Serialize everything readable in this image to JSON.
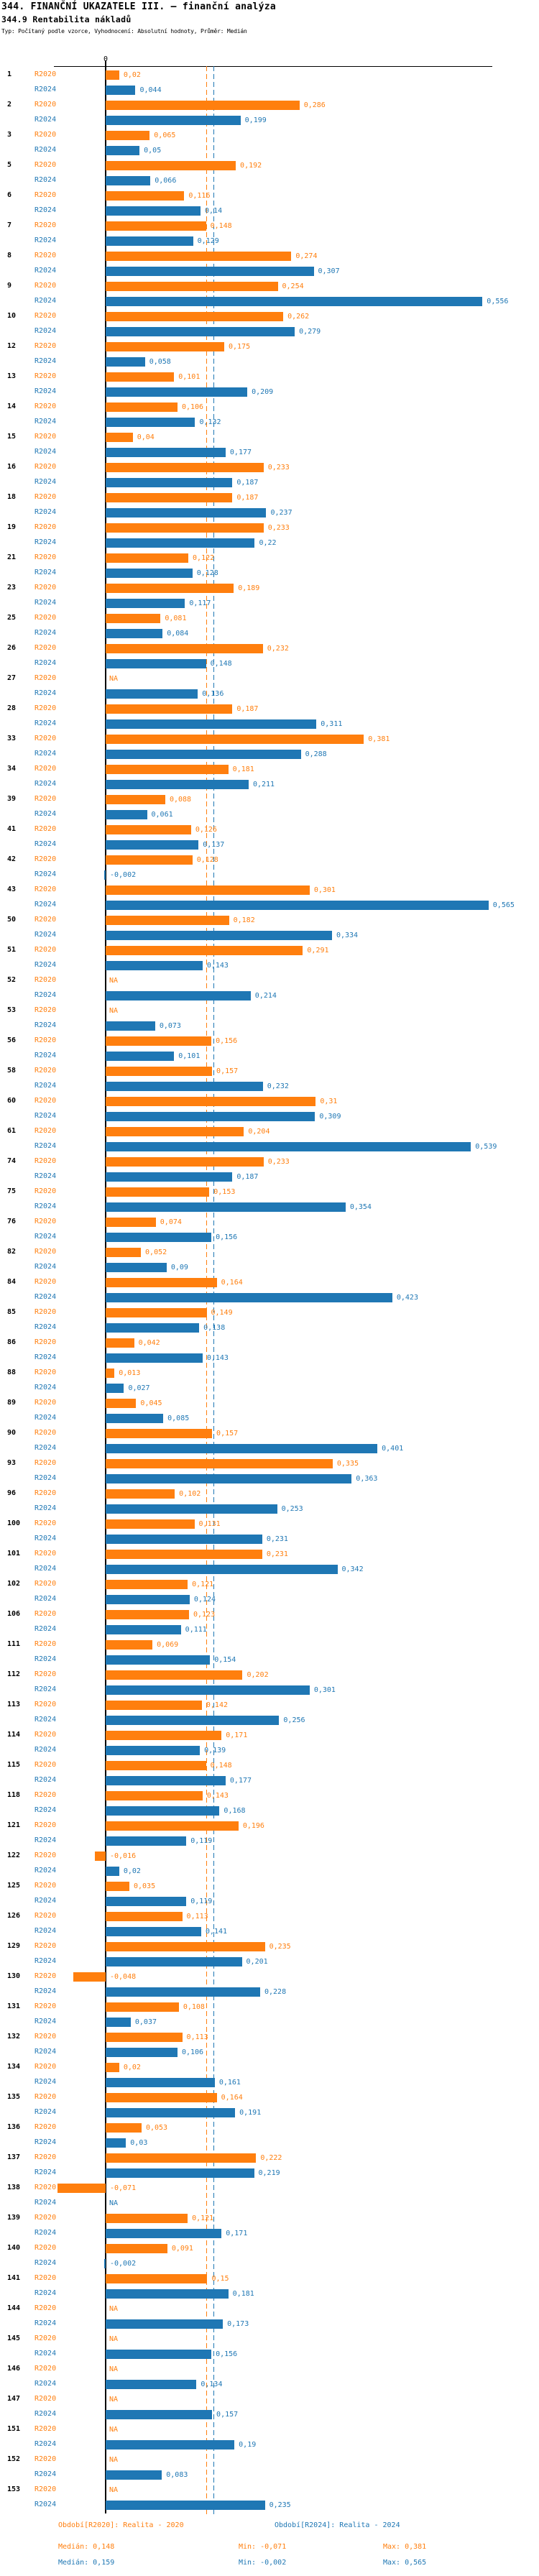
{
  "header": {
    "title": "344. FINANČNÍ UKAZATELE III. – finanční analýza",
    "subtitle": "344.9 Rentabilita nákladů",
    "meta": "Typ: Počítaný podle vzorce, Vyhodnocení: Absolutní hodnoty, Průměr: Medián"
  },
  "colors": {
    "r2020": "#ff7f0e",
    "r2024": "#1f77b4",
    "axis": "#000000"
  },
  "chart_data": {
    "type": "bar",
    "orientation": "horizontal",
    "title": "344.9 Rentabilita nákladů",
    "xlabel": "",
    "ylabel": "",
    "axis_zero_label": "0",
    "grid": false,
    "legend_position": "bottom",
    "na_label": "NA",
    "decimal_separator": ",",
    "series_names": [
      "R2020",
      "R2024"
    ],
    "medians": {
      "R2020": 0.148,
      "R2024": 0.159
    },
    "stats": {
      "R2020": {
        "median": 0.148,
        "min": -0.071,
        "max": 0.381
      },
      "R2024": {
        "median": 0.159,
        "min": -0.002,
        "max": 0.565
      }
    },
    "xlim": [
      -0.08,
      0.62
    ],
    "rows": [
      [
        "1",
        0.02,
        0.044
      ],
      [
        "2",
        0.286,
        0.199
      ],
      [
        "3",
        0.065,
        0.05
      ],
      [
        "5",
        0.192,
        0.066
      ],
      [
        "6",
        0.116,
        0.14
      ],
      [
        "7",
        0.148,
        0.129
      ],
      [
        "8",
        0.274,
        0.307
      ],
      [
        "9",
        0.254,
        0.556
      ],
      [
        "10",
        0.262,
        0.279
      ],
      [
        "12",
        0.175,
        0.058
      ],
      [
        "13",
        0.101,
        0.209
      ],
      [
        "14",
        0.106,
        0.132
      ],
      [
        "15",
        0.04,
        0.177
      ],
      [
        "16",
        0.233,
        0.187
      ],
      [
        "18",
        0.187,
        0.237
      ],
      [
        "19",
        0.233,
        0.22
      ],
      [
        "21",
        0.122,
        0.128
      ],
      [
        "23",
        0.189,
        0.117
      ],
      [
        "25",
        0.081,
        0.084
      ],
      [
        "26",
        0.232,
        0.148
      ],
      [
        "27",
        null,
        0.136
      ],
      [
        "28",
        0.187,
        0.311
      ],
      [
        "33",
        0.381,
        0.288
      ],
      [
        "34",
        0.181,
        0.211
      ],
      [
        "39",
        0.088,
        0.061
      ],
      [
        "41",
        0.126,
        0.137
      ],
      [
        "42",
        0.128,
        -0.002
      ],
      [
        "43",
        0.301,
        0.565
      ],
      [
        "50",
        0.182,
        0.334
      ],
      [
        "51",
        0.291,
        0.143
      ],
      [
        "52",
        null,
        0.214
      ],
      [
        "53",
        null,
        0.073
      ],
      [
        "56",
        0.156,
        0.101
      ],
      [
        "58",
        0.157,
        0.232
      ],
      [
        "60",
        0.31,
        0.309
      ],
      [
        "61",
        0.204,
        0.539
      ],
      [
        "74",
        0.233,
        0.187
      ],
      [
        "75",
        0.153,
        0.354
      ],
      [
        "76",
        0.074,
        0.156
      ],
      [
        "82",
        0.052,
        0.09
      ],
      [
        "84",
        0.164,
        0.423
      ],
      [
        "85",
        0.149,
        0.138
      ],
      [
        "86",
        0.042,
        0.143
      ],
      [
        "88",
        0.013,
        0.027
      ],
      [
        "89",
        0.045,
        0.085
      ],
      [
        "90",
        0.157,
        0.401
      ],
      [
        "93",
        0.335,
        0.363
      ],
      [
        "96",
        0.102,
        0.253
      ],
      [
        "100",
        0.131,
        0.231
      ],
      [
        "101",
        0.231,
        0.342
      ],
      [
        "102",
        0.121,
        0.124
      ],
      [
        "106",
        0.123,
        0.111
      ],
      [
        "111",
        0.069,
        0.154
      ],
      [
        "112",
        0.202,
        0.301
      ],
      [
        "113",
        0.142,
        0.256
      ],
      [
        "114",
        0.171,
        0.139
      ],
      [
        "115",
        0.148,
        0.177
      ],
      [
        "118",
        0.143,
        0.168
      ],
      [
        "121",
        0.196,
        0.119
      ],
      [
        "122",
        -0.016,
        0.02
      ],
      [
        "125",
        0.035,
        0.119
      ],
      [
        "126",
        0.113,
        0.141
      ],
      [
        "129",
        0.235,
        0.201
      ],
      [
        "130",
        -0.048,
        0.228
      ],
      [
        "131",
        0.108,
        0.037
      ],
      [
        "132",
        0.113,
        0.106
      ],
      [
        "134",
        0.02,
        0.161
      ],
      [
        "135",
        0.164,
        0.191
      ],
      [
        "136",
        0.053,
        0.03
      ],
      [
        "137",
        0.222,
        0.219
      ],
      [
        "138",
        -0.071,
        null
      ],
      [
        "139",
        0.121,
        0.171
      ],
      [
        "140",
        0.091,
        -0.002
      ],
      [
        "141",
        0.15,
        0.181
      ],
      [
        "144",
        null,
        0.173
      ],
      [
        "145",
        null,
        0.156
      ],
      [
        "146",
        null,
        0.134
      ],
      [
        "147",
        null,
        0.157
      ],
      [
        "151",
        null,
        0.19
      ],
      [
        "152",
        null,
        0.083
      ],
      [
        "153",
        null,
        0.235
      ]
    ]
  },
  "footer": {
    "legend_r2020": "Období[R2020]: Realita - 2020",
    "legend_r2024": "Období[R2024]: Realita - 2024",
    "r2020_median": "Medián: 0,148",
    "r2020_min": "Min: -0,071",
    "r2020_max": "Max: 0,381",
    "r2024_median": "Medián: 0,159",
    "r2024_min": "Min: -0,002",
    "r2024_max": "Max: 0,565"
  }
}
